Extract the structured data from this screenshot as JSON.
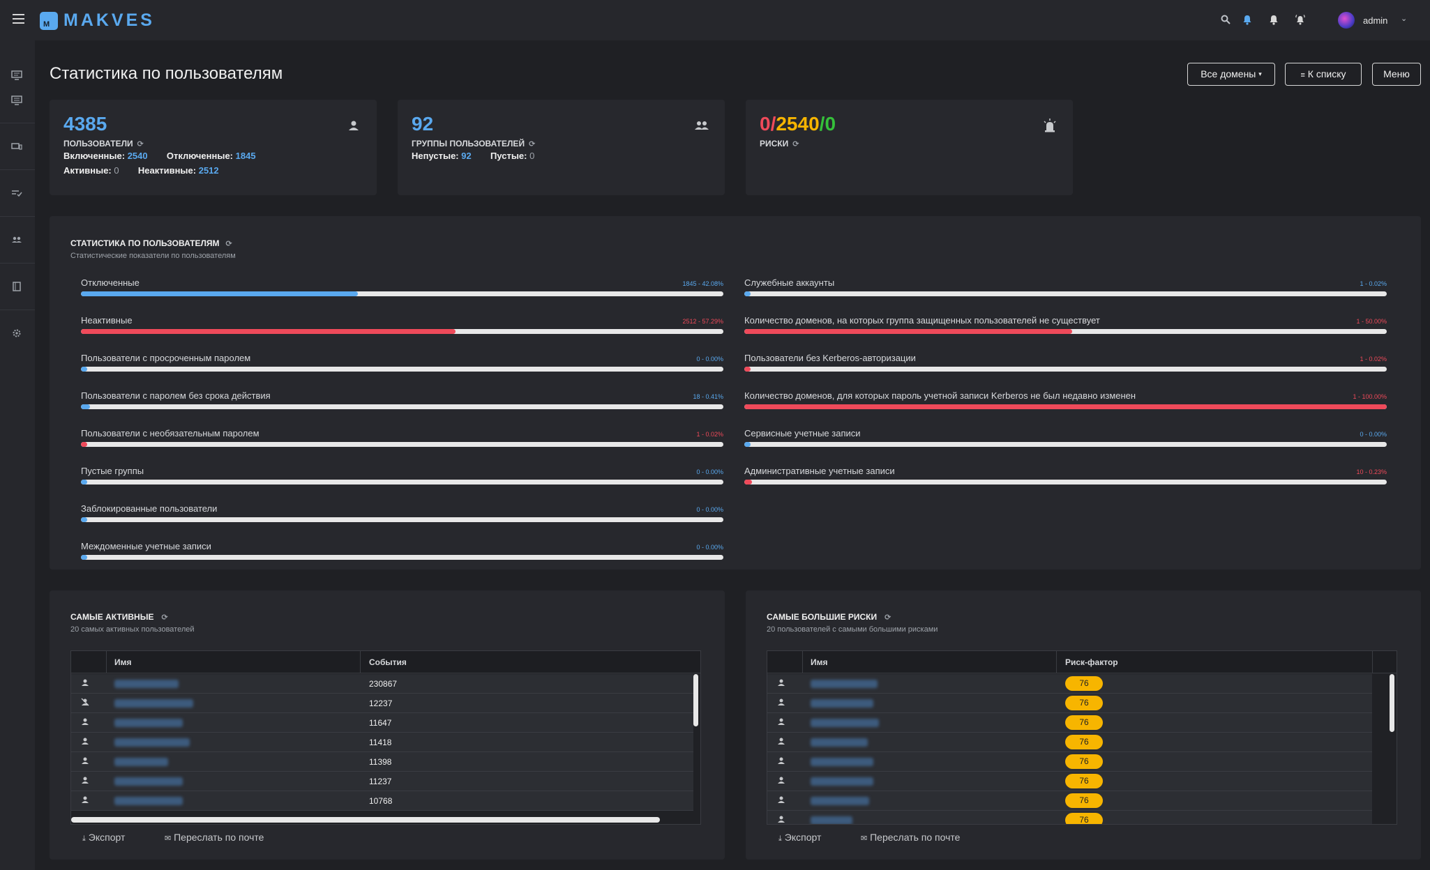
{
  "app": {
    "logo_text": "MAKVES",
    "logo_letter": "M"
  },
  "topbar": {
    "icons": [
      "search-icon",
      "bell-icon",
      "alarm-icon",
      "alarm-ring-icon"
    ],
    "user": {
      "name": "admin"
    }
  },
  "sidebar": {
    "icons": [
      "monitor-icon",
      "monitor-list-icon",
      "devices-icon",
      "checklist-icon",
      "users-icon",
      "book-icon",
      "gear-icon"
    ]
  },
  "header": {
    "title": "Статистика по пользователям",
    "domains_button": "Все домены",
    "list_button": "К списку",
    "menu_button": "Меню"
  },
  "cards": {
    "users": {
      "value": "4385",
      "label": "ПОЛЬЗОВАТЕЛИ",
      "enabled_label": "Включенные:",
      "enabled_value": "2540",
      "disabled_label": "Отключенные:",
      "disabled_value": "1845",
      "active_label": "Активные:",
      "active_value": "0",
      "inactive_label": "Неактивные:",
      "inactive_value": "2512"
    },
    "groups": {
      "value": "92",
      "label": "ГРУППЫ ПОЛЬЗОВАТЕЛЕЙ",
      "nonempty_label": "Непустые:",
      "nonempty_value": "92",
      "empty_label": "Пустые:",
      "empty_value": "0"
    },
    "risks": {
      "v1": "0",
      "sep1": "/",
      "v2": "2540",
      "sep2": "/",
      "v3": "0",
      "label": "РИСКИ",
      "colors": {
        "high": "#ef4a5a",
        "medium": "#f7b500",
        "low": "#35c13a"
      }
    }
  },
  "stats": {
    "title": "СТАТИСТИКА ПО ПОЛЬЗОВАТЕЛЯМ",
    "subtitle": "Статистические показатели по пользователям",
    "left": [
      {
        "label": "Отключенные",
        "value": "1845 - 42.08%",
        "pct": 42.08,
        "color": "#5aa9ef"
      },
      {
        "label": "Неактивные",
        "value": "2512 - 57.29%",
        "pct": 57.29,
        "color": "#ef4a5a"
      },
      {
        "label": "Пользователи с просроченным паролем",
        "value": "0 - 0.00%",
        "pct": 0,
        "color": "#5aa9ef"
      },
      {
        "label": "Пользователи с паролем без срока действия",
        "value": "18 - 0.41%",
        "pct": 0.41,
        "color": "#5aa9ef"
      },
      {
        "label": "Пользователи с необязательным паролем",
        "value": "1 - 0.02%",
        "pct": 0.02,
        "color": "#ef4a5a"
      },
      {
        "label": "Пустые группы",
        "value": "0 - 0.00%",
        "pct": 0,
        "color": "#5aa9ef"
      },
      {
        "label": "Заблокированные пользователи",
        "value": "0 - 0.00%",
        "pct": 0,
        "color": "#5aa9ef"
      },
      {
        "label": "Междоменные учетные записи",
        "value": "0 - 0.00%",
        "pct": 0,
        "color": "#5aa9ef"
      }
    ],
    "right": [
      {
        "label": "Служебные аккаунты",
        "value": "1 - 0.02%",
        "pct": 0.02,
        "color": "#5aa9ef"
      },
      {
        "label": "Количество доменов, на которых группа защищенных пользователей не существует",
        "value": "1 - 50.00%",
        "pct": 50,
        "color": "#ef4a5a"
      },
      {
        "label": "Пользователи без Kerberos-авторизации",
        "value": "1 - 0.02%",
        "pct": 0.02,
        "color": "#ef4a5a"
      },
      {
        "label": "Количество доменов, для которых пароль учетной записи Kerberos не был недавно изменен",
        "value": "1 - 100.00%",
        "pct": 100,
        "color": "#ef4a5a"
      },
      {
        "label": "Сервисные учетные записи",
        "value": "0 - 0.00%",
        "pct": 0,
        "color": "#5aa9ef"
      },
      {
        "label": "Административные учетные записи",
        "value": "10 - 0.23%",
        "pct": 0.23,
        "color": "#ef4a5a"
      }
    ]
  },
  "most_active": {
    "title": "САМЫЕ АКТИВНЫЕ",
    "subtitle": "20 самых активных пользователей",
    "col_name": "Имя",
    "col_events": "События",
    "rows": [
      {
        "events": "230867",
        "icon": "user-icon"
      },
      {
        "events": "12237",
        "icon": "user-off-icon"
      },
      {
        "events": "11647",
        "icon": "user-icon"
      },
      {
        "events": "11418",
        "icon": "user-icon"
      },
      {
        "events": "11398",
        "icon": "user-icon"
      },
      {
        "events": "11237",
        "icon": "user-icon"
      },
      {
        "events": "10768",
        "icon": "user-icon"
      }
    ],
    "export": "Экспорт",
    "mail": "Переслать по почте"
  },
  "top_risks": {
    "title": "САМЫЕ БОЛЬШИЕ РИСКИ",
    "subtitle": "20 пользователей с самыми большими рисками",
    "col_name": "Имя",
    "col_risk": "Риск-фактор",
    "rows": [
      "76",
      "76",
      "76",
      "76",
      "76",
      "76",
      "76",
      "76"
    ],
    "export": "Экспорт",
    "mail": "Переслать по почте"
  }
}
